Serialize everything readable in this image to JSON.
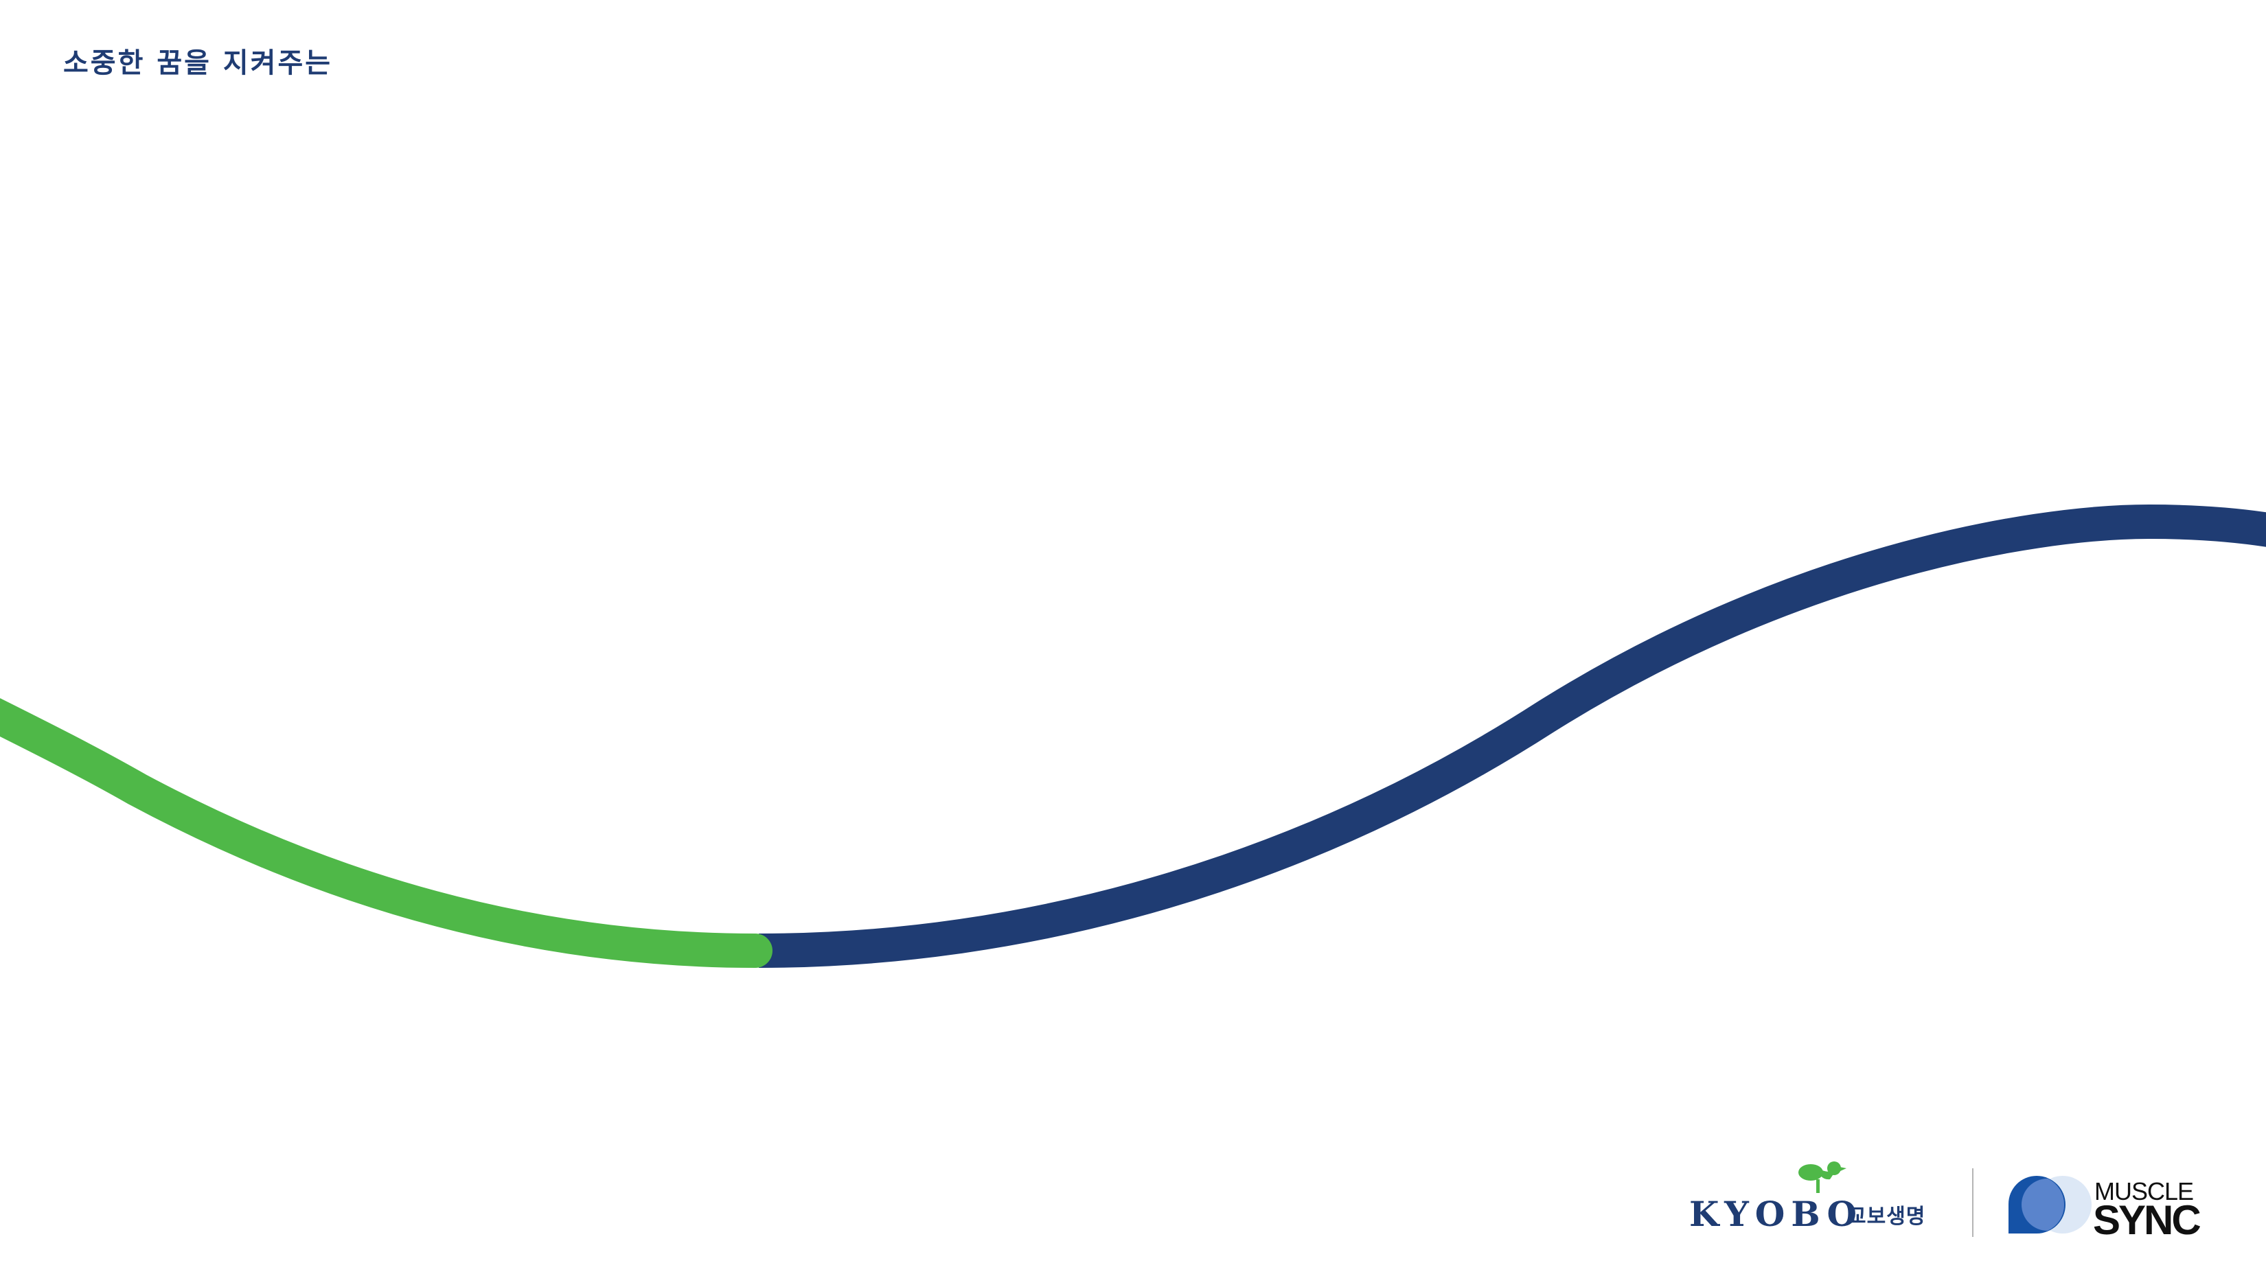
{
  "header": {
    "slogan": "소중한 꿈을 지켜주는"
  },
  "colors": {
    "navy": "#1f3c73",
    "green": "#4fb848",
    "background": "#ffffff"
  },
  "logos": {
    "kyobo": {
      "wordmark": "KYOBO",
      "korean_name": "교보생명",
      "icon": "bird-icon"
    },
    "muscle_sync": {
      "line1": "MUSCLE",
      "line2": "SYNC",
      "icon": "overlapping-circles-icon"
    }
  }
}
